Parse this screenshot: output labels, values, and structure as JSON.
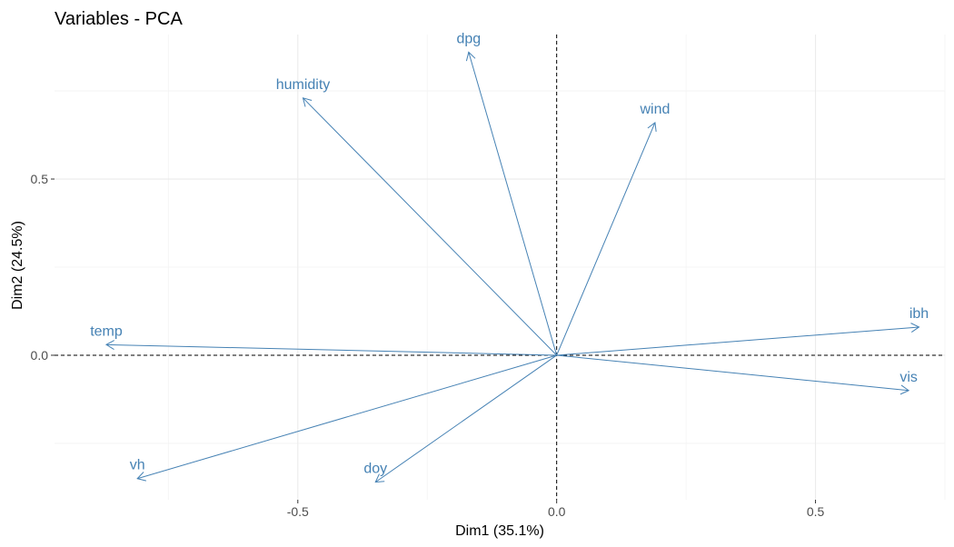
{
  "chart_data": {
    "type": "scatter",
    "title": "Variables - PCA",
    "xlabel": "Dim1 (35.1%)",
    "ylabel": "Dim2 (24.5%)",
    "xlim": [
      -0.97,
      0.75
    ],
    "ylim": [
      -0.41,
      0.91
    ],
    "x_ticks": [
      -0.5,
      0.0,
      0.5
    ],
    "x_tick_labels": [
      "-0.5",
      "0.0",
      "0.5"
    ],
    "y_ticks": [
      0.0,
      0.5
    ],
    "y_tick_labels": [
      "0.0",
      "0.5"
    ],
    "grid": true,
    "reference_lines": {
      "x": 0,
      "y": 0,
      "style": "dashed"
    },
    "arrow_color": "#4682B4",
    "variables": [
      {
        "name": "temp",
        "x": -0.87,
        "y": 0.03
      },
      {
        "name": "humidity",
        "x": -0.49,
        "y": 0.73
      },
      {
        "name": "dpg",
        "x": -0.17,
        "y": 0.86
      },
      {
        "name": "wind",
        "x": 0.19,
        "y": 0.66
      },
      {
        "name": "ibh",
        "x": 0.7,
        "y": 0.08
      },
      {
        "name": "vis",
        "x": 0.68,
        "y": -0.1
      },
      {
        "name": "doy",
        "x": -0.35,
        "y": -0.36
      },
      {
        "name": "vh",
        "x": -0.81,
        "y": -0.35
      }
    ]
  }
}
